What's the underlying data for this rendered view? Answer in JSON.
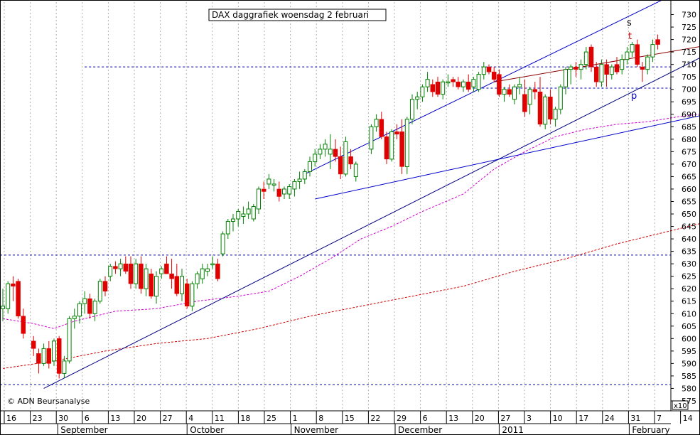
{
  "chart_data": {
    "type": "candlestick",
    "title": "DAX daggrafiek  woensdag 2 februari",
    "credit": "© ADN Beursanalyse",
    "y_unit": "x10",
    "ylim": [
      571,
      735
    ],
    "y_ticks": [
      575,
      580,
      585,
      590,
      595,
      600,
      605,
      610,
      615,
      620,
      625,
      630,
      635,
      640,
      645,
      650,
      655,
      660,
      665,
      670,
      675,
      680,
      685,
      690,
      695,
      700,
      705,
      710,
      715,
      720,
      725,
      730
    ],
    "grid": "vertical dotted at each week",
    "day_ticks": [
      "16",
      "23",
      "30",
      "6",
      "13",
      "20",
      "27",
      "4",
      "11",
      "18",
      "25",
      "1",
      "8",
      "15",
      "22",
      "29",
      "6",
      "13",
      "20",
      "27",
      "3",
      "10",
      "17",
      "24",
      "31",
      "7",
      "14"
    ],
    "months": [
      "September",
      "October",
      "November",
      "December",
      "2011",
      "February"
    ],
    "line_labels": [
      "s",
      "t",
      "p"
    ],
    "colors": {
      "up": "#008000",
      "down": "#e00000",
      "trend": "#000080",
      "channel": "#0000cc",
      "resistance": "#8b0000",
      "ma_short": "#d000d0",
      "ma_long": "#d00000",
      "hline": "#0000aa",
      "grid": "#b0b0b0"
    },
    "horizontal_levels": [
      {
        "y": 633.5,
        "from": 0
      },
      {
        "y": 581.5,
        "from": 0
      },
      {
        "y": 709,
        "from": 16
      },
      {
        "y": 700.5,
        "from": 92
      }
    ],
    "trendlines": [
      {
        "name": "trend",
        "points": [
          [
            8,
            580
          ],
          [
            153,
            730
          ]
        ]
      },
      {
        "name": "channel-upper",
        "points": [
          [
            59,
            666
          ],
          [
            129,
            736
          ]
        ]
      },
      {
        "name": "channel-lower",
        "points": [
          [
            61,
            656
          ],
          [
            151,
            696
          ]
        ]
      },
      {
        "name": "resistance-t",
        "points": [
          [
            96,
            703
          ],
          [
            150,
            722
          ]
        ]
      }
    ],
    "ma_short": [
      [
        0,
        608
      ],
      [
        6,
        606
      ],
      [
        10,
        604
      ],
      [
        14,
        607
      ],
      [
        22,
        611
      ],
      [
        30,
        612
      ],
      [
        38,
        615
      ],
      [
        46,
        617
      ],
      [
        52,
        619
      ],
      [
        58,
        625
      ],
      [
        64,
        632
      ],
      [
        70,
        640
      ],
      [
        76,
        645
      ],
      [
        82,
        651
      ],
      [
        90,
        658
      ],
      [
        96,
        668
      ],
      [
        102,
        675
      ],
      [
        108,
        681
      ],
      [
        114,
        684
      ],
      [
        120,
        686
      ],
      [
        126,
        687
      ],
      [
        132,
        689
      ],
      [
        140,
        691
      ],
      [
        148,
        697
      ]
    ],
    "ma_long": [
      [
        0,
        588
      ],
      [
        10,
        591
      ],
      [
        20,
        595
      ],
      [
        30,
        598
      ],
      [
        40,
        600
      ],
      [
        50,
        604
      ],
      [
        60,
        609
      ],
      [
        70,
        613
      ],
      [
        80,
        617
      ],
      [
        90,
        621
      ],
      [
        100,
        627
      ],
      [
        110,
        632
      ],
      [
        120,
        638
      ],
      [
        130,
        643
      ],
      [
        140,
        648
      ],
      [
        148,
        650
      ]
    ],
    "candles": [
      {
        "x": 0,
        "o": 612,
        "h": 620,
        "l": 607,
        "c": 613
      },
      {
        "x": 1,
        "o": 612,
        "h": 623,
        "l": 610,
        "c": 622
      },
      {
        "x": 2,
        "o": 622,
        "h": 625,
        "l": 615,
        "c": 621
      },
      {
        "x": 3,
        "o": 623,
        "h": 624,
        "l": 608,
        "c": 609
      },
      {
        "x": 4,
        "o": 609,
        "h": 612,
        "l": 600,
        "c": 602
      },
      {
        "x": 6,
        "o": 599,
        "h": 601,
        "l": 593,
        "c": 596
      },
      {
        "x": 7,
        "o": 594,
        "h": 596,
        "l": 586,
        "c": 590
      },
      {
        "x": 8,
        "o": 590,
        "h": 598,
        "l": 589,
        "c": 596
      },
      {
        "x": 9,
        "o": 596,
        "h": 599,
        "l": 588,
        "c": 590
      },
      {
        "x": 10,
        "o": 591,
        "h": 600,
        "l": 589,
        "c": 599
      },
      {
        "x": 11,
        "o": 600,
        "h": 601,
        "l": 584,
        "c": 586
      },
      {
        "x": 12,
        "o": 586,
        "h": 593,
        "l": 584,
        "c": 591
      },
      {
        "x": 13,
        "o": 591,
        "h": 609,
        "l": 590,
        "c": 608
      },
      {
        "x": 14,
        "o": 608,
        "h": 612,
        "l": 604,
        "c": 609
      },
      {
        "x": 15,
        "o": 609,
        "h": 615,
        "l": 606,
        "c": 614
      },
      {
        "x": 16,
        "o": 614,
        "h": 619,
        "l": 610,
        "c": 616
      },
      {
        "x": 17,
        "o": 616,
        "h": 618,
        "l": 608,
        "c": 610
      },
      {
        "x": 18,
        "o": 610,
        "h": 616,
        "l": 607,
        "c": 615
      },
      {
        "x": 19,
        "o": 615,
        "h": 624,
        "l": 614,
        "c": 623
      },
      {
        "x": 20,
        "o": 623,
        "h": 625,
        "l": 617,
        "c": 619
      },
      {
        "x": 21,
        "o": 625,
        "h": 630,
        "l": 623,
        "c": 629
      },
      {
        "x": 22,
        "o": 629,
        "h": 631,
        "l": 626,
        "c": 628
      },
      {
        "x": 23,
        "o": 628,
        "h": 632,
        "l": 625,
        "c": 630
      },
      {
        "x": 24,
        "o": 630,
        "h": 633,
        "l": 626,
        "c": 627
      },
      {
        "x": 25,
        "o": 630,
        "h": 633,
        "l": 620,
        "c": 622
      },
      {
        "x": 26,
        "o": 622,
        "h": 632,
        "l": 620,
        "c": 630
      },
      {
        "x": 27,
        "o": 630,
        "h": 633,
        "l": 618,
        "c": 620
      },
      {
        "x": 28,
        "o": 620,
        "h": 630,
        "l": 617,
        "c": 628
      },
      {
        "x": 29,
        "o": 626,
        "h": 628,
        "l": 616,
        "c": 617
      },
      {
        "x": 30,
        "o": 617,
        "h": 627,
        "l": 614,
        "c": 625
      },
      {
        "x": 31,
        "o": 626,
        "h": 629,
        "l": 624,
        "c": 628
      },
      {
        "x": 32,
        "o": 630,
        "h": 633,
        "l": 626,
        "c": 626
      },
      {
        "x": 33,
        "o": 626,
        "h": 632,
        "l": 620,
        "c": 624
      },
      {
        "x": 34,
        "o": 625,
        "h": 630,
        "l": 617,
        "c": 618
      },
      {
        "x": 35,
        "o": 618,
        "h": 628,
        "l": 615,
        "c": 625
      },
      {
        "x": 36,
        "o": 622,
        "h": 624,
        "l": 612,
        "c": 613
      },
      {
        "x": 37,
        "o": 613,
        "h": 623,
        "l": 611,
        "c": 622
      },
      {
        "x": 38,
        "o": 622,
        "h": 627,
        "l": 620,
        "c": 626
      },
      {
        "x": 39,
        "o": 624,
        "h": 630,
        "l": 622,
        "c": 628
      },
      {
        "x": 40,
        "o": 627,
        "h": 630,
        "l": 625,
        "c": 628
      },
      {
        "x": 41,
        "o": 630,
        "h": 633,
        "l": 628,
        "c": 630
      },
      {
        "x": 42,
        "o": 630,
        "h": 632,
        "l": 623,
        "c": 624
      },
      {
        "x": 43,
        "o": 634,
        "h": 643,
        "l": 633,
        "c": 642
      },
      {
        "x": 44,
        "o": 642,
        "h": 648,
        "l": 640,
        "c": 647
      },
      {
        "x": 45,
        "o": 647,
        "h": 650,
        "l": 643,
        "c": 648
      },
      {
        "x": 46,
        "o": 648,
        "h": 652,
        "l": 645,
        "c": 651
      },
      {
        "x": 47,
        "o": 649,
        "h": 653,
        "l": 646,
        "c": 650
      },
      {
        "x": 48,
        "o": 650,
        "h": 655,
        "l": 648,
        "c": 652
      },
      {
        "x": 49,
        "o": 648,
        "h": 654,
        "l": 647,
        "c": 653
      },
      {
        "x": 50,
        "o": 652,
        "h": 661,
        "l": 650,
        "c": 660
      },
      {
        "x": 51,
        "o": 660,
        "h": 663,
        "l": 656,
        "c": 659
      },
      {
        "x": 52,
        "o": 662,
        "h": 666,
        "l": 660,
        "c": 664
      },
      {
        "x": 53,
        "o": 662,
        "h": 664,
        "l": 659,
        "c": 662
      },
      {
        "x": 54,
        "o": 660,
        "h": 663,
        "l": 655,
        "c": 657
      },
      {
        "x": 55,
        "o": 658,
        "h": 661,
        "l": 656,
        "c": 660
      },
      {
        "x": 56,
        "o": 658,
        "h": 662,
        "l": 656,
        "c": 661
      },
      {
        "x": 57,
        "o": 660,
        "h": 664,
        "l": 657,
        "c": 663
      },
      {
        "x": 58,
        "o": 663,
        "h": 667,
        "l": 660,
        "c": 664
      },
      {
        "x": 59,
        "o": 664,
        "h": 668,
        "l": 662,
        "c": 667
      },
      {
        "x": 60,
        "o": 667,
        "h": 673,
        "l": 665,
        "c": 671
      },
      {
        "x": 61,
        "o": 671,
        "h": 676,
        "l": 669,
        "c": 674
      },
      {
        "x": 62,
        "o": 674,
        "h": 678,
        "l": 672,
        "c": 676
      },
      {
        "x": 63,
        "o": 676,
        "h": 680,
        "l": 673,
        "c": 678
      },
      {
        "x": 64,
        "o": 674,
        "h": 682,
        "l": 668,
        "c": 676
      },
      {
        "x": 65,
        "o": 676,
        "h": 680,
        "l": 671,
        "c": 673
      },
      {
        "x": 66,
        "o": 673,
        "h": 677,
        "l": 664,
        "c": 666
      },
      {
        "x": 67,
        "o": 666,
        "h": 681,
        "l": 665,
        "c": 679
      },
      {
        "x": 68,
        "o": 673,
        "h": 676,
        "l": 668,
        "c": 670
      },
      {
        "x": 69,
        "o": 665,
        "h": 671,
        "l": 663,
        "c": 670
      },
      {
        "x": 72,
        "o": 676,
        "h": 686,
        "l": 674,
        "c": 685
      },
      {
        "x": 73,
        "o": 685,
        "h": 690,
        "l": 683,
        "c": 688
      },
      {
        "x": 74,
        "o": 688,
        "h": 691,
        "l": 680,
        "c": 681
      },
      {
        "x": 75,
        "o": 681,
        "h": 683,
        "l": 670,
        "c": 672
      },
      {
        "x": 76,
        "o": 672,
        "h": 684,
        "l": 671,
        "c": 683
      },
      {
        "x": 77,
        "o": 683,
        "h": 686,
        "l": 680,
        "c": 682
      },
      {
        "x": 78,
        "o": 683,
        "h": 688,
        "l": 666,
        "c": 669
      },
      {
        "x": 79,
        "o": 669,
        "h": 689,
        "l": 666,
        "c": 688
      },
      {
        "x": 80,
        "o": 688,
        "h": 698,
        "l": 686,
        "c": 696
      },
      {
        "x": 81,
        "o": 696,
        "h": 699,
        "l": 692,
        "c": 697
      },
      {
        "x": 82,
        "o": 697,
        "h": 702,
        "l": 695,
        "c": 701
      },
      {
        "x": 83,
        "o": 701,
        "h": 707,
        "l": 699,
        "c": 704
      },
      {
        "x": 84,
        "o": 702,
        "h": 704,
        "l": 697,
        "c": 699
      },
      {
        "x": 85,
        "o": 703,
        "h": 705,
        "l": 697,
        "c": 698
      },
      {
        "x": 86,
        "o": 698,
        "h": 704,
        "l": 696,
        "c": 703
      },
      {
        "x": 87,
        "o": 703,
        "h": 706,
        "l": 701,
        "c": 703
      },
      {
        "x": 88,
        "o": 704,
        "h": 705,
        "l": 701,
        "c": 703
      },
      {
        "x": 89,
        "o": 703,
        "h": 705,
        "l": 700,
        "c": 701
      },
      {
        "x": 90,
        "o": 701,
        "h": 704,
        "l": 699,
        "c": 703
      },
      {
        "x": 91,
        "o": 703,
        "h": 706,
        "l": 699,
        "c": 700
      },
      {
        "x": 92,
        "o": 701,
        "h": 705,
        "l": 699,
        "c": 704
      },
      {
        "x": 93,
        "o": 700,
        "h": 707,
        "l": 699,
        "c": 706
      },
      {
        "x": 94,
        "o": 706,
        "h": 711,
        "l": 704,
        "c": 709
      },
      {
        "x": 95,
        "o": 709,
        "h": 710,
        "l": 706,
        "c": 707
      },
      {
        "x": 96,
        "o": 707,
        "h": 709,
        "l": 703,
        "c": 704
      },
      {
        "x": 97,
        "o": 706,
        "h": 708,
        "l": 697,
        "c": 698
      },
      {
        "x": 98,
        "o": 698,
        "h": 701,
        "l": 695,
        "c": 700
      },
      {
        "x": 99,
        "o": 700,
        "h": 702,
        "l": 697,
        "c": 698
      },
      {
        "x": 100,
        "o": 696,
        "h": 702,
        "l": 694,
        "c": 701
      },
      {
        "x": 101,
        "o": 701,
        "h": 705,
        "l": 698,
        "c": 702
      },
      {
        "x": 102,
        "o": 698,
        "h": 704,
        "l": 689,
        "c": 691
      },
      {
        "x": 103,
        "o": 694,
        "h": 701,
        "l": 690,
        "c": 700
      },
      {
        "x": 104,
        "o": 700,
        "h": 703,
        "l": 696,
        "c": 699
      },
      {
        "x": 105,
        "o": 699,
        "h": 705,
        "l": 685,
        "c": 686
      },
      {
        "x": 106,
        "o": 686,
        "h": 698,
        "l": 684,
        "c": 697
      },
      {
        "x": 107,
        "o": 697,
        "h": 700,
        "l": 686,
        "c": 688
      },
      {
        "x": 108,
        "o": 688,
        "h": 693,
        "l": 685,
        "c": 692
      },
      {
        "x": 109,
        "o": 692,
        "h": 702,
        "l": 690,
        "c": 701
      },
      {
        "x": 110,
        "o": 701,
        "h": 709,
        "l": 698,
        "c": 708
      },
      {
        "x": 111,
        "o": 708,
        "h": 710,
        "l": 702,
        "c": 709
      },
      {
        "x": 112,
        "o": 709,
        "h": 711,
        "l": 705,
        "c": 708
      },
      {
        "x": 113,
        "o": 708,
        "h": 712,
        "l": 704,
        "c": 710
      },
      {
        "x": 114,
        "o": 710,
        "h": 717,
        "l": 708,
        "c": 715
      },
      {
        "x": 115,
        "o": 717,
        "h": 718,
        "l": 707,
        "c": 709
      },
      {
        "x": 116,
        "o": 709,
        "h": 711,
        "l": 701,
        "c": 703
      },
      {
        "x": 117,
        "o": 703,
        "h": 712,
        "l": 701,
        "c": 710
      },
      {
        "x": 118,
        "o": 710,
        "h": 712,
        "l": 701,
        "c": 706
      },
      {
        "x": 119,
        "o": 706,
        "h": 710,
        "l": 704,
        "c": 709
      },
      {
        "x": 120,
        "o": 710,
        "h": 713,
        "l": 706,
        "c": 707
      },
      {
        "x": 121,
        "o": 708,
        "h": 714,
        "l": 706,
        "c": 712
      },
      {
        "x": 122,
        "o": 712,
        "h": 717,
        "l": 710,
        "c": 715
      },
      {
        "x": 123,
        "o": 715,
        "h": 719,
        "l": 713,
        "c": 718
      },
      {
        "x": 124,
        "o": 718,
        "h": 720,
        "l": 709,
        "c": 710
      },
      {
        "x": 125,
        "o": 709,
        "h": 711,
        "l": 703,
        "c": 708
      },
      {
        "x": 126,
        "o": 708,
        "h": 714,
        "l": 706,
        "c": 713
      },
      {
        "x": 127,
        "o": 713,
        "h": 720,
        "l": 711,
        "c": 718
      },
      {
        "x": 128,
        "o": 720,
        "h": 722,
        "l": 716,
        "c": 718
      }
    ]
  }
}
